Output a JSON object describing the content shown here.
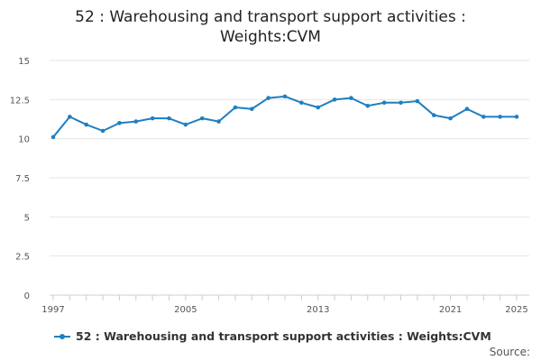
{
  "chart_data": {
    "type": "line",
    "title_line1": "52 : Warehousing and transport support activities :",
    "title_line2": "Weights:CVM",
    "x": [
      1997,
      1998,
      1999,
      2000,
      2001,
      2002,
      2003,
      2004,
      2005,
      2006,
      2007,
      2008,
      2009,
      2010,
      2011,
      2012,
      2013,
      2014,
      2015,
      2016,
      2017,
      2018,
      2019,
      2020,
      2021,
      2022,
      2023,
      2024,
      2025
    ],
    "series": [
      {
        "name": "52 : Warehousing and transport support activities : Weights:CVM",
        "color": "#1f7fc0",
        "values": [
          10.1,
          11.4,
          10.9,
          10.5,
          11.0,
          11.1,
          11.3,
          11.3,
          10.9,
          11.3,
          11.1,
          12.0,
          11.9,
          12.6,
          12.7,
          12.3,
          12.0,
          12.5,
          12.6,
          12.1,
          12.3,
          12.3,
          12.4,
          11.5,
          11.3,
          11.9,
          11.4,
          11.4,
          11.4
        ]
      }
    ],
    "xticks": [
      "1997",
      "2005",
      "2013",
      "2021",
      "2025"
    ],
    "yticks": [
      "0",
      "2.5",
      "5",
      "7.5",
      "10",
      "12.5",
      "15"
    ],
    "ylim": [
      0,
      15
    ],
    "xlim": [
      1997,
      2025
    ],
    "grid": true,
    "legend_position": "bottom-left"
  },
  "footer": {
    "source_label": "Source:"
  }
}
